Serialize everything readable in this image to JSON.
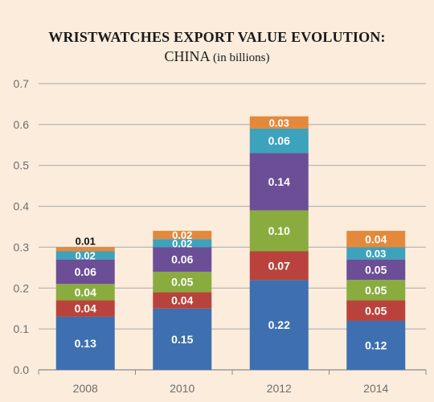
{
  "chart_data": {
    "type": "bar",
    "stacked": true,
    "title": "WRISTWATCHES EXPORT VALUE EVOLUTION:",
    "subtitle_main": "CHINA",
    "subtitle_note": "(in billions)",
    "categories": [
      "2008",
      "2010",
      "2012",
      "2014"
    ],
    "ylim": [
      0,
      0.7
    ],
    "yticks": [
      "0.0",
      "0.1",
      "0.2",
      "0.3",
      "0.4",
      "0.5",
      "0.6",
      "0.7"
    ],
    "grid": true,
    "series": [
      {
        "color": "#3e6fb0",
        "values": [
          0.13,
          0.15,
          0.22,
          0.12
        ],
        "labels": [
          "0.13",
          "0.15",
          "0.22",
          "0.12"
        ]
      },
      {
        "color": "#b9433c",
        "values": [
          0.04,
          0.04,
          0.07,
          0.05
        ],
        "labels": [
          "0.04",
          "0.04",
          "0.07",
          "0.05"
        ]
      },
      {
        "color": "#8aac3e",
        "values": [
          0.04,
          0.05,
          0.1,
          0.05
        ],
        "labels": [
          "0.04",
          "0.05",
          "0.10",
          "0.05"
        ]
      },
      {
        "color": "#6c4e97",
        "values": [
          0.06,
          0.06,
          0.14,
          0.05
        ],
        "labels": [
          "0.06",
          "0.06",
          "0.14",
          "0.05"
        ]
      },
      {
        "color": "#3da2bb",
        "values": [
          0.02,
          0.02,
          0.06,
          0.03
        ],
        "labels": [
          "0.02",
          "0.02",
          "0.06",
          "0.03"
        ]
      },
      {
        "color": "#e4893b",
        "values": [
          0.01,
          0.02,
          0.03,
          0.04
        ],
        "labels": [
          "0.01",
          "0.02",
          "0.03",
          "0.04"
        ]
      }
    ]
  }
}
